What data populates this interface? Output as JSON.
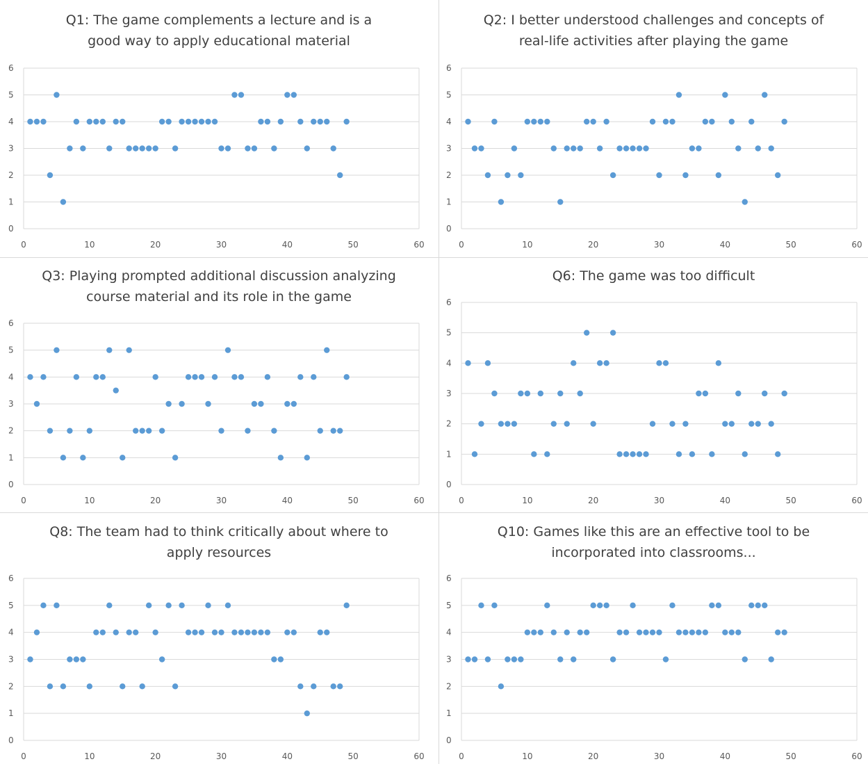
{
  "chart_data": [
    {
      "type": "scatter",
      "title": "Q1: The game complements a lecture and is a good way to apply educational material",
      "xlim": [
        0,
        60
      ],
      "ylim": [
        0,
        6
      ],
      "xticks": [
        0,
        10,
        20,
        30,
        40,
        50,
        60
      ],
      "yticks": [
        0,
        1,
        2,
        3,
        4,
        5,
        6
      ],
      "grid": "horizontal",
      "color": "#5b9bd5",
      "x": [
        1,
        2,
        3,
        4,
        5,
        6,
        7,
        8,
        9,
        10,
        11,
        12,
        13,
        14,
        15,
        16,
        17,
        18,
        19,
        20,
        21,
        22,
        23,
        24,
        25,
        26,
        27,
        28,
        29,
        30,
        31,
        32,
        33,
        34,
        35,
        36,
        37,
        38,
        39,
        40,
        41,
        42,
        43,
        44,
        45,
        46,
        47,
        48,
        49
      ],
      "y": [
        4,
        4,
        4,
        2,
        5,
        1,
        3,
        4,
        3,
        4,
        4,
        4,
        3,
        4,
        4,
        3,
        3,
        3,
        3,
        3,
        4,
        4,
        3,
        4,
        4,
        4,
        4,
        4,
        4,
        3,
        3,
        5,
        5,
        3,
        3,
        4,
        4,
        3,
        4,
        5,
        5,
        4,
        3,
        4,
        4,
        4,
        3,
        2,
        4
      ]
    },
    {
      "type": "scatter",
      "title": "Q2: I better understood challenges and concepts of real-life activities after playing the game",
      "xlim": [
        0,
        60
      ],
      "ylim": [
        0,
        6
      ],
      "xticks": [
        0,
        10,
        20,
        30,
        40,
        50,
        60
      ],
      "yticks": [
        0,
        1,
        2,
        3,
        4,
        5,
        6
      ],
      "grid": "horizontal",
      "color": "#5b9bd5",
      "x": [
        1,
        2,
        3,
        4,
        5,
        6,
        7,
        8,
        9,
        10,
        11,
        12,
        13,
        14,
        15,
        16,
        17,
        18,
        19,
        20,
        21,
        22,
        23,
        24,
        25,
        26,
        27,
        28,
        29,
        30,
        31,
        32,
        33,
        34,
        35,
        36,
        37,
        38,
        39,
        40,
        41,
        42,
        43,
        44,
        45,
        46,
        47,
        48,
        49
      ],
      "y": [
        4,
        3,
        3,
        2,
        4,
        1,
        2,
        3,
        2,
        4,
        4,
        4,
        4,
        3,
        1,
        3,
        3,
        3,
        4,
        4,
        3,
        4,
        2,
        3,
        3,
        3,
        3,
        3,
        4,
        2,
        4,
        4,
        5,
        2,
        3,
        3,
        4,
        4,
        2,
        5,
        4,
        3,
        1,
        4,
        3,
        5,
        3,
        2,
        4
      ]
    },
    {
      "type": "scatter",
      "title": "Q3: Playing prompted additional discussion analyzing course material and its role in the game",
      "xlim": [
        0,
        60
      ],
      "ylim": [
        0,
        6
      ],
      "xticks": [
        0,
        10,
        20,
        30,
        40,
        50,
        60
      ],
      "yticks": [
        0,
        1,
        2,
        3,
        4,
        5,
        6
      ],
      "grid": "horizontal",
      "color": "#5b9bd5",
      "x": [
        1,
        2,
        3,
        4,
        5,
        6,
        7,
        8,
        9,
        10,
        11,
        12,
        13,
        14,
        15,
        16,
        17,
        18,
        19,
        20,
        21,
        22,
        23,
        24,
        25,
        26,
        27,
        28,
        29,
        30,
        31,
        32,
        33,
        34,
        35,
        36,
        37,
        38,
        39,
        40,
        41,
        42,
        43,
        44,
        45,
        46,
        47,
        48,
        49
      ],
      "y": [
        4,
        3,
        4,
        2,
        5,
        1,
        2,
        4,
        1,
        2,
        4,
        4,
        5,
        3.5,
        1,
        5,
        2,
        2,
        2,
        4,
        2,
        3,
        1,
        3,
        4,
        4,
        4,
        3,
        4,
        2,
        5,
        4,
        4,
        2,
        3,
        3,
        4,
        2,
        1,
        3,
        3,
        4,
        1,
        4,
        2,
        5,
        2,
        2,
        4
      ]
    },
    {
      "type": "scatter",
      "title": "Q6: The game was too difficult",
      "xlim": [
        0,
        60
      ],
      "ylim": [
        0,
        6
      ],
      "xticks": [
        0,
        10,
        20,
        30,
        40,
        50,
        60
      ],
      "yticks": [
        0,
        1,
        2,
        3,
        4,
        5,
        6
      ],
      "grid": "horizontal",
      "color": "#5b9bd5",
      "x": [
        1,
        2,
        3,
        4,
        5,
        6,
        7,
        8,
        9,
        10,
        11,
        12,
        13,
        14,
        15,
        16,
        17,
        18,
        19,
        20,
        21,
        22,
        23,
        24,
        25,
        26,
        27,
        28,
        29,
        30,
        31,
        32,
        33,
        34,
        35,
        36,
        37,
        38,
        39,
        40,
        41,
        42,
        43,
        44,
        45,
        46,
        47,
        48,
        49
      ],
      "y": [
        4,
        1,
        2,
        4,
        3,
        2,
        2,
        2,
        3,
        3,
        1,
        3,
        1,
        2,
        3,
        2,
        4,
        3,
        5,
        2,
        4,
        4,
        5,
        1,
        1,
        1,
        1,
        1,
        2,
        4,
        4,
        2,
        1,
        2,
        1,
        3,
        3,
        1,
        4,
        2,
        2,
        3,
        1,
        2,
        2,
        3,
        2,
        1,
        3
      ]
    },
    {
      "type": "scatter",
      "title": "Q8: The team had to think critically about where to apply resources",
      "xlim": [
        0,
        60
      ],
      "ylim": [
        0,
        6
      ],
      "xticks": [
        0,
        10,
        20,
        30,
        40,
        50,
        60
      ],
      "yticks": [
        0,
        1,
        2,
        3,
        4,
        5,
        6
      ],
      "grid": "horizontal",
      "color": "#5b9bd5",
      "x": [
        1,
        2,
        3,
        4,
        5,
        6,
        7,
        8,
        9,
        10,
        11,
        12,
        13,
        14,
        15,
        16,
        17,
        18,
        19,
        20,
        21,
        22,
        23,
        24,
        25,
        26,
        27,
        28,
        29,
        30,
        31,
        32,
        33,
        34,
        35,
        36,
        37,
        38,
        39,
        40,
        41,
        42,
        43,
        44,
        45,
        46,
        47,
        48,
        49
      ],
      "y": [
        3,
        4,
        5,
        2,
        5,
        2,
        3,
        3,
        3,
        2,
        4,
        4,
        5,
        4,
        2,
        4,
        4,
        2,
        5,
        4,
        3,
        5,
        2,
        5,
        4,
        4,
        4,
        5,
        4,
        4,
        5,
        4,
        4,
        4,
        4,
        4,
        4,
        3,
        3,
        4,
        4,
        2,
        1,
        2,
        4,
        4,
        2,
        2,
        5
      ]
    },
    {
      "type": "scatter",
      "title": "Q10: Games like this are an effective tool to be incorporated into classrooms...",
      "xlim": [
        0,
        60
      ],
      "ylim": [
        0,
        6
      ],
      "xticks": [
        0,
        10,
        20,
        30,
        40,
        50,
        60
      ],
      "yticks": [
        0,
        1,
        2,
        3,
        4,
        5,
        6
      ],
      "grid": "horizontal",
      "color": "#5b9bd5",
      "x": [
        1,
        2,
        3,
        4,
        5,
        6,
        7,
        8,
        9,
        10,
        11,
        12,
        13,
        14,
        15,
        16,
        17,
        18,
        19,
        20,
        21,
        22,
        23,
        24,
        25,
        26,
        27,
        28,
        29,
        30,
        31,
        32,
        33,
        34,
        35,
        36,
        37,
        38,
        39,
        40,
        41,
        42,
        43,
        44,
        45,
        46,
        47,
        48,
        49
      ],
      "y": [
        3,
        3,
        5,
        3,
        5,
        2,
        3,
        3,
        3,
        4,
        4,
        4,
        5,
        4,
        3,
        4,
        3,
        4,
        4,
        5,
        5,
        5,
        3,
        4,
        4,
        5,
        4,
        4,
        4,
        4,
        3,
        5,
        4,
        4,
        4,
        4,
        4,
        5,
        5,
        4,
        4,
        4,
        3,
        5,
        5,
        5,
        3,
        4,
        4
      ]
    }
  ]
}
